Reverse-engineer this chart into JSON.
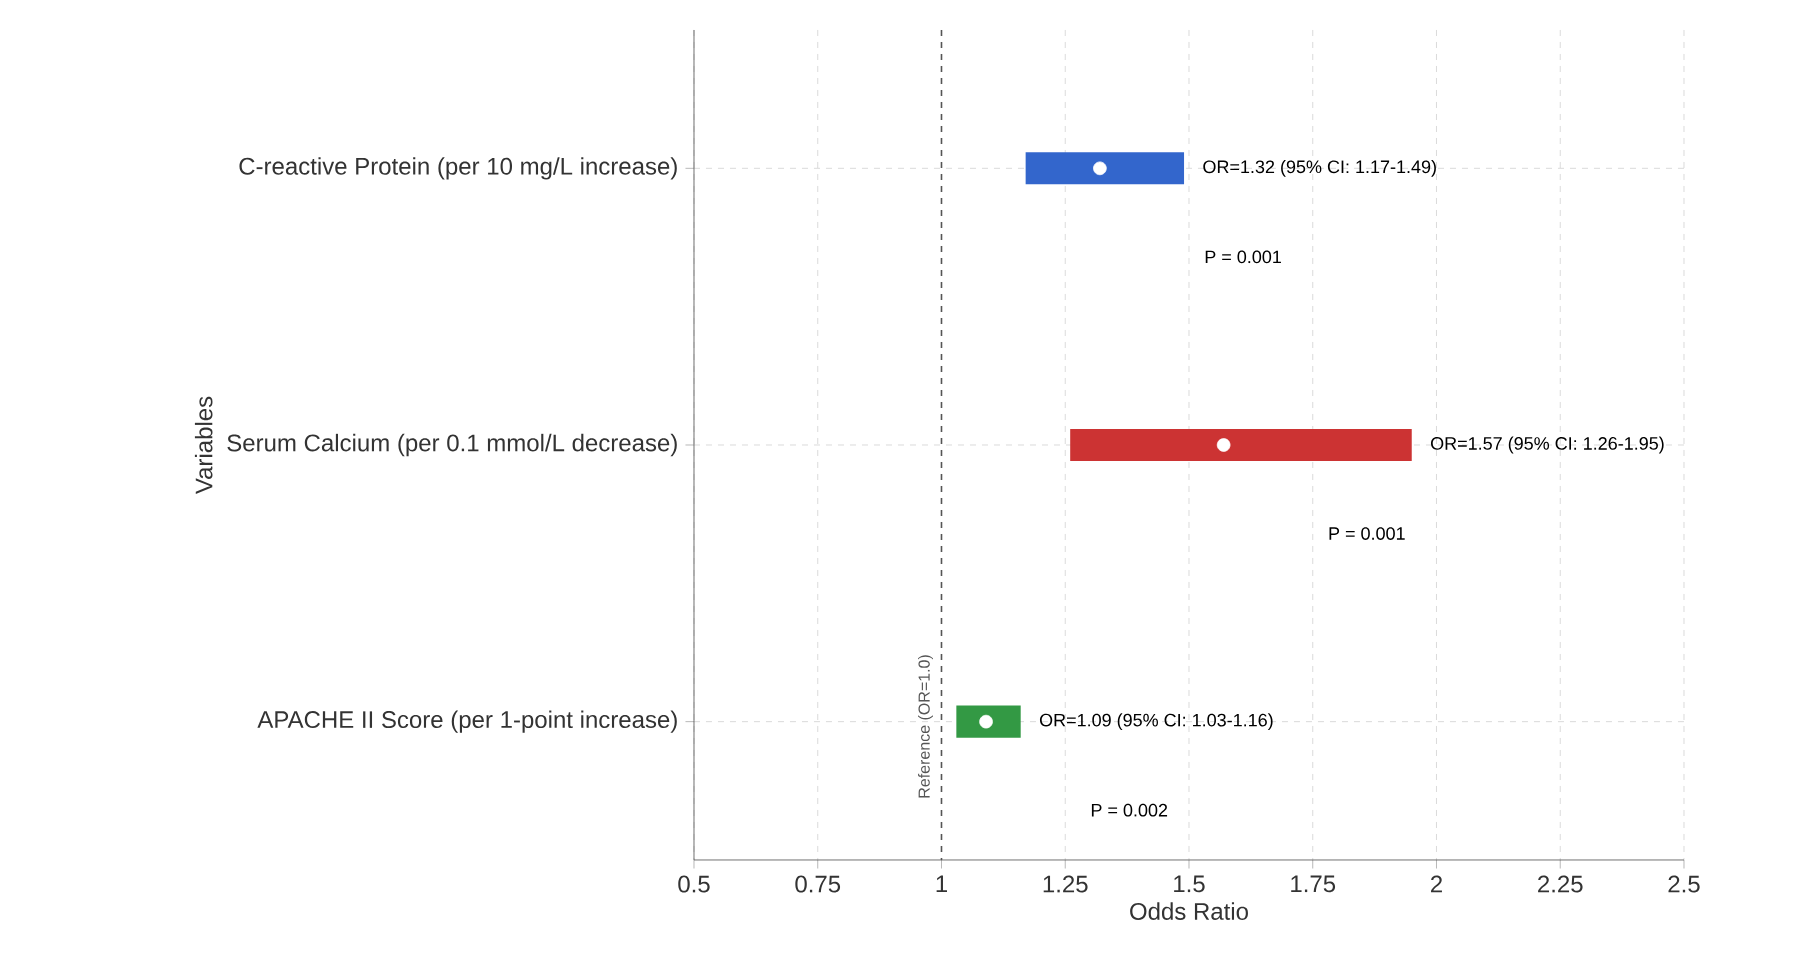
{
  "chart_data": {
    "type": "bar",
    "orientation": "horizontal",
    "xlabel": "Odds Ratio",
    "ylabel": "Variables",
    "categories": [
      "C-reactive Protein (per 10 mg/L increase)",
      "Serum Calcium (per 0.1 mmol/L decrease)",
      "APACHE II Score (per 1-point increase)"
    ],
    "series": [
      {
        "base": [
          1.17,
          1.26,
          1.03
        ],
        "values": [
          0.32,
          0.69,
          0.13
        ],
        "colors": [
          "#3366cc",
          "#cc3333",
          "#339944"
        ]
      },
      {
        "type": "scatter",
        "x": [
          "C-reactive Protein (per 10 mg/L increase)",
          "Serum Calcium (per 0.1 mmol/L decrease)",
          "APACHE II Score (per 1-point increase)"
        ],
        "values": [
          1.32,
          1.57,
          1.09
        ],
        "color": "#ffffff",
        "marker": "circle"
      }
    ],
    "xlim": [
      0.5,
      2.5
    ],
    "xticks": [
      0.5,
      0.75,
      1,
      1.25,
      1.5,
      1.75,
      2,
      2.25,
      2.5
    ],
    "grid": true,
    "ref_lines": [
      {
        "axis": "x",
        "value": 1,
        "label": "Reference (OR=1.0)",
        "color": "#555555",
        "line_style": "dashed"
      }
    ],
    "annotations": [
      "OR=1.32 (95% CI: 1.17-1.49)",
      "P = 0.001",
      "OR=1.57 (95% CI: 1.26-1.95)",
      "P = 0.001",
      "OR=1.09 (95% CI: 1.03-1.16)",
      "P = 0.002"
    ]
  }
}
